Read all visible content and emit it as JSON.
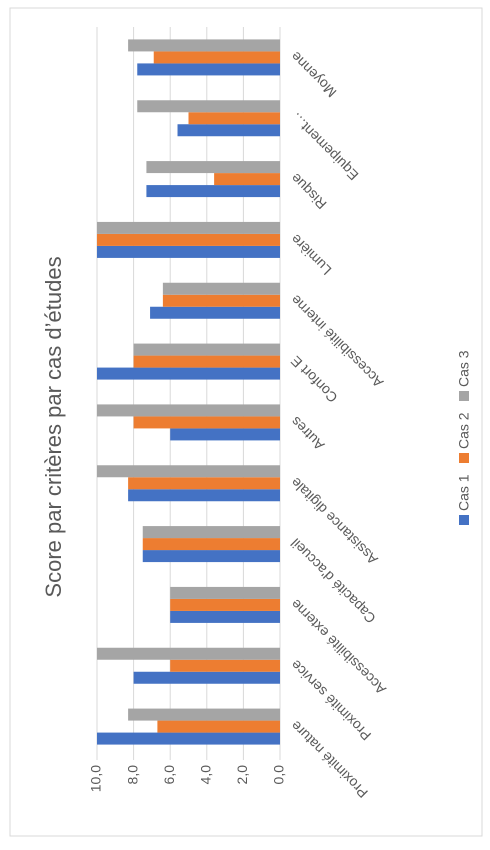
{
  "chart_data": {
    "type": "bar",
    "title": "Score par critères par cas d’études",
    "categories": [
      "Proximité nature",
      "Proximité service",
      "Accessibilité externe",
      "Capacité d'accueil",
      "Assistance digitale",
      "Autres",
      "Confort E",
      "Accessibilité interne",
      "Lumière",
      "Risque",
      "Equipement…",
      "Moyenne"
    ],
    "series": [
      {
        "name": "Cas 1",
        "color": "#4472c4",
        "values": [
          10,
          8,
          6,
          7.5,
          8.3,
          6,
          10,
          7.1,
          10,
          7.3,
          5.6,
          7.8
        ]
      },
      {
        "name": "Cas 2",
        "color": "#ed7d31",
        "values": [
          6.7,
          6,
          6,
          7.5,
          8.3,
          8,
          8,
          6.4,
          10,
          3.6,
          5,
          6.9
        ]
      },
      {
        "name": "Cas 3",
        "color": "#a5a5a5",
        "values": [
          8.3,
          10,
          6,
          7.5,
          10,
          10,
          8,
          6.4,
          10,
          7.3,
          7.8,
          8.3
        ]
      }
    ],
    "ylim": [
      0,
      10
    ],
    "yticks": [
      {
        "value": 0,
        "label": "0,0"
      },
      {
        "value": 2,
        "label": "2,0"
      },
      {
        "value": 4,
        "label": "4,0"
      },
      {
        "value": 6,
        "label": "6,0"
      },
      {
        "value": 8,
        "label": "8,0"
      },
      {
        "value": 10,
        "label": "10,0"
      }
    ],
    "grid": true,
    "legend": "bottom"
  }
}
